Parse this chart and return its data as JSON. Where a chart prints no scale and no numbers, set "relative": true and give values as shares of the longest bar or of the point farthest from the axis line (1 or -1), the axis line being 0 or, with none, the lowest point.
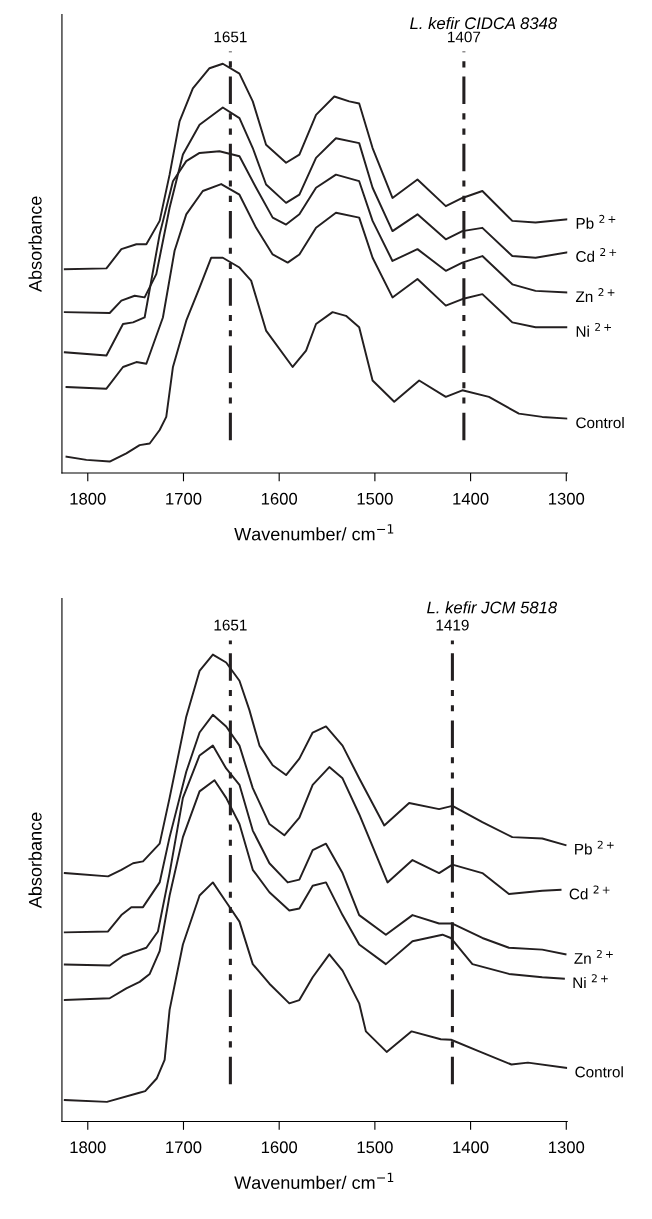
{
  "chart_data": [
    {
      "type": "line",
      "title": "L. kefir CIDCA 8348",
      "xlabel": "Wavenumber/ cm$^{−1}$",
      "ylabel": "Absorbance",
      "relative": true,
      "xlim": [
        1827,
        1299
      ],
      "xticks": [
        1800,
        1700,
        1600,
        1500,
        1400,
        1300
      ],
      "grid": false,
      "legend": false,
      "marker": "none",
      "line_style": "solid",
      "ref_lines": [
        {
          "axis": "x",
          "value": 1651,
          "label": "1651",
          "line_style": "dashed",
          "color": "#231f20"
        },
        {
          "axis": "x",
          "value": 1407,
          "label": "1407",
          "line_style": "dashed",
          "color": "#231f20"
        }
      ],
      "series": [
        {
          "name": "Pb $^{2+}$",
          "color": "#231f20",
          "x": [
            1824,
            1780.5,
            1764.9,
            1749.2,
            1738.8,
            1724.9,
            1714.5,
            1704.1,
            1690.2,
            1672.8,
            1658.9,
            1641.5,
            1627.6,
            1613.7,
            1592.8,
            1578.9,
            1561.5,
            1542.4,
            1526.8,
            1516.4,
            1502.4,
            1481.6,
            1455.5,
            1425.9,
            1408.6,
            1387.7,
            1356.4,
            1332.1,
            1299.1
          ],
          "values": [
            0.498,
            0.5,
            0.547,
            0.559,
            0.559,
            0.616,
            0.729,
            0.859,
            0.94,
            0.989,
            1.0,
            0.976,
            0.908,
            0.802,
            0.758,
            0.778,
            0.875,
            0.92,
            0.908,
            0.903,
            0.794,
            0.672,
            0.717,
            0.652,
            0.672,
            0.689,
            0.616,
            0.612,
            0.62
          ]
        },
        {
          "name": "Cd $^{2+}$",
          "color": "#231f20",
          "x": [
            1824,
            1777.1,
            1764.9,
            1751.0,
            1740.6,
            1728.4,
            1714.5,
            1700.6,
            1683.2,
            1658.9,
            1641.5,
            1627.6,
            1613.7,
            1592.8,
            1578.9,
            1561.5,
            1540.7,
            1516.4,
            1502.4,
            1481.6,
            1455.5,
            1425.9,
            1408.6,
            1387.7,
            1356.4,
            1332.1,
            1299.1
          ],
          "values": [
            0.393,
            0.391,
            0.421,
            0.433,
            0.429,
            0.486,
            0.648,
            0.778,
            0.851,
            0.893,
            0.867,
            0.794,
            0.705,
            0.66,
            0.68,
            0.77,
            0.818,
            0.806,
            0.697,
            0.591,
            0.632,
            0.571,
            0.591,
            0.599,
            0.53,
            0.526,
            0.539
          ]
        },
        {
          "name": "Zn $^{2+}$",
          "color": "#231f20",
          "x": [
            1824,
            1780.5,
            1763.2,
            1752.7,
            1740.6,
            1724.9,
            1711.0,
            1697.1,
            1683.2,
            1662.4,
            1641.5,
            1624.1,
            1606.8,
            1592.8,
            1578.9,
            1561.5,
            1540.7,
            1516.4,
            1502.4,
            1481.6,
            1455.5,
            1425.9,
            1408.6,
            1387.7,
            1356.4,
            1332.1,
            1299.1
          ],
          "values": [
            0.295,
            0.287,
            0.364,
            0.368,
            0.38,
            0.583,
            0.713,
            0.762,
            0.782,
            0.786,
            0.774,
            0.697,
            0.624,
            0.607,
            0.632,
            0.697,
            0.729,
            0.713,
            0.616,
            0.518,
            0.547,
            0.494,
            0.514,
            0.53,
            0.461,
            0.445,
            0.441
          ]
        },
        {
          "name": "Ni $^{2+}$",
          "color": "#231f20",
          "x": [
            1822.2,
            1780.5,
            1763.2,
            1749.2,
            1738.8,
            1721.5,
            1709.3,
            1697.1,
            1679.8,
            1660.6,
            1641.5,
            1624.1,
            1606.8,
            1591.1,
            1578.9,
            1561.5,
            1540.7,
            1516.4,
            1502.4,
            1481.6,
            1455.5,
            1425.9,
            1408.6,
            1387.7,
            1356.4,
            1332.1,
            1299.1
          ],
          "values": [
            0.21,
            0.206,
            0.259,
            0.271,
            0.267,
            0.38,
            0.543,
            0.632,
            0.689,
            0.706,
            0.68,
            0.599,
            0.534,
            0.514,
            0.534,
            0.599,
            0.636,
            0.624,
            0.526,
            0.429,
            0.474,
            0.409,
            0.425,
            0.437,
            0.368,
            0.356,
            0.356
          ]
        },
        {
          "name": "Control",
          "color": "#231f20",
          "x": [
            1822.2,
            1801.4,
            1777.1,
            1759.7,
            1745.8,
            1735.3,
            1724.9,
            1718.0,
            1711.0,
            1697.1,
            1683.2,
            1671.0,
            1658.9,
            1641.5,
            1629.3,
            1613.7,
            1585.9,
            1571.9,
            1561.5,
            1544.2,
            1530.2,
            1516.4,
            1502.4,
            1479.8,
            1453.7,
            1425.9,
            1408.6,
            1380.8,
            1349.5,
            1325.1,
            1299.1
          ],
          "values": [
            0.04,
            0.032,
            0.028,
            0.048,
            0.068,
            0.072,
            0.105,
            0.137,
            0.259,
            0.372,
            0.453,
            0.526,
            0.526,
            0.502,
            0.47,
            0.348,
            0.259,
            0.299,
            0.364,
            0.393,
            0.384,
            0.356,
            0.226,
            0.174,
            0.226,
            0.186,
            0.202,
            0.186,
            0.145,
            0.137,
            0.133
          ]
        }
      ]
    },
    {
      "type": "line",
      "title": "L. kefir JCM 5818",
      "xlabel": "Wavenumber/ cm$^{−1}$",
      "ylabel": "Absorbance",
      "relative": true,
      "xlim": [
        1827,
        1299
      ],
      "xticks": [
        1800,
        1700,
        1600,
        1500,
        1400,
        1300
      ],
      "grid": false,
      "legend": false,
      "marker": "none",
      "line_style": "solid",
      "ref_lines": [
        {
          "axis": "x",
          "value": 1651,
          "label": "1651",
          "line_style": "dashed",
          "color": "#231f20"
        },
        {
          "axis": "x",
          "value": 1419,
          "label": "1419",
          "line_style": "dashed",
          "color": "#231f20"
        }
      ],
      "series": [
        {
          "name": "Pb $^{2+}$",
          "color": "#231f20",
          "x": [
            1824,
            1778.8,
            1764.9,
            1752.7,
            1742.3,
            1724.9,
            1714.5,
            1697.1,
            1683.2,
            1669.3,
            1655.4,
            1641.5,
            1631.1,
            1620.6,
            1606.8,
            1592.8,
            1578.9,
            1565.0,
            1551.1,
            1533.8,
            1516.4,
            1490.2,
            1464.2,
            1432.9,
            1419.0,
            1387.7,
            1356.4,
            1325.1,
            1300.8
          ],
          "values": [
            0.532,
            0.525,
            0.539,
            0.553,
            0.557,
            0.595,
            0.693,
            0.867,
            0.965,
            1.0,
            0.983,
            0.944,
            0.881,
            0.805,
            0.763,
            0.742,
            0.777,
            0.833,
            0.846,
            0.805,
            0.735,
            0.634,
            0.682,
            0.669,
            0.676,
            0.641,
            0.609,
            0.606,
            0.592
          ]
        },
        {
          "name": "Cd $^{2+}$",
          "color": "#231f20",
          "x": [
            1824,
            1778.8,
            1764.9,
            1754.5,
            1742.3,
            1724.9,
            1714.5,
            1697.1,
            1683.2,
            1669.3,
            1655.4,
            1641.5,
            1627.6,
            1610.2,
            1594.6,
            1578.9,
            1565.0,
            1547.6,
            1533.8,
            1516.4,
            1486.8,
            1460.7,
            1432.9,
            1419.0,
            1387.7,
            1359.9,
            1325.1,
            1306.0
          ],
          "values": [
            0.405,
            0.407,
            0.442,
            0.459,
            0.459,
            0.512,
            0.609,
            0.749,
            0.833,
            0.871,
            0.846,
            0.805,
            0.714,
            0.637,
            0.613,
            0.651,
            0.721,
            0.759,
            0.735,
            0.658,
            0.512,
            0.56,
            0.532,
            0.55,
            0.532,
            0.487,
            0.494,
            0.496
          ]
        },
        {
          "name": "Zn $^{2+}$",
          "color": "#231f20",
          "x": [
            1824,
            1777.1,
            1763.2,
            1749.2,
            1738.8,
            1726.7,
            1714.5,
            1700.6,
            1683.2,
            1669.3,
            1655.4,
            1641.5,
            1627.6,
            1610.2,
            1591.1,
            1578.9,
            1565.0,
            1551.1,
            1533.8,
            1516.4,
            1488.5,
            1460.7,
            1432.9,
            1419.0,
            1387.7,
            1359.9,
            1325.1,
            1300.8
          ],
          "values": [
            0.336,
            0.334,
            0.355,
            0.365,
            0.372,
            0.407,
            0.532,
            0.693,
            0.784,
            0.805,
            0.756,
            0.721,
            0.623,
            0.553,
            0.512,
            0.518,
            0.581,
            0.595,
            0.532,
            0.442,
            0.4,
            0.442,
            0.424,
            0.424,
            0.393,
            0.372,
            0.368,
            0.358
          ]
        },
        {
          "name": "Ni $^{2+}$",
          "color": "#231f20",
          "x": [
            1824,
            1777.1,
            1759.7,
            1745.8,
            1735.3,
            1724.9,
            1714.5,
            1700.6,
            1683.2,
            1667.6,
            1655.4,
            1641.5,
            1627.6,
            1610.2,
            1589.4,
            1578.9,
            1565.0,
            1551.1,
            1533.8,
            1516.4,
            1488.5,
            1460.7,
            1429.4,
            1420.7,
            1398.1,
            1359.9,
            1325.1,
            1302.5
          ],
          "values": [
            0.26,
            0.264,
            0.285,
            0.299,
            0.316,
            0.365,
            0.484,
            0.609,
            0.707,
            0.731,
            0.693,
            0.637,
            0.539,
            0.491,
            0.452,
            0.456,
            0.505,
            0.512,
            0.442,
            0.379,
            0.337,
            0.386,
            0.4,
            0.393,
            0.337,
            0.316,
            0.309,
            0.306
          ]
        },
        {
          "name": "Control",
          "color": "#231f20",
          "x": [
            1824,
            1780,
            1747,
            1740,
            1728,
            1719.7,
            1714.5,
            1700.6,
            1683.2,
            1669.3,
            1655.4,
            1641.5,
            1627.6,
            1610.2,
            1589.4,
            1578.9,
            1565.0,
            1547.6,
            1533.8,
            1516.4,
            1509.4,
            1487.7,
            1461.6,
            1431.2,
            1420.4,
            1392.3,
            1357.3,
            1340.1,
            1300.0
          ],
          "values": [
            0.046,
            0.042,
            0.061,
            0.065,
            0.092,
            0.132,
            0.239,
            0.379,
            0.484,
            0.512,
            0.47,
            0.428,
            0.337,
            0.295,
            0.253,
            0.26,
            0.309,
            0.358,
            0.323,
            0.253,
            0.193,
            0.149,
            0.193,
            0.176,
            0.175,
            0.151,
            0.122,
            0.126,
            0.115
          ]
        }
      ]
    }
  ]
}
